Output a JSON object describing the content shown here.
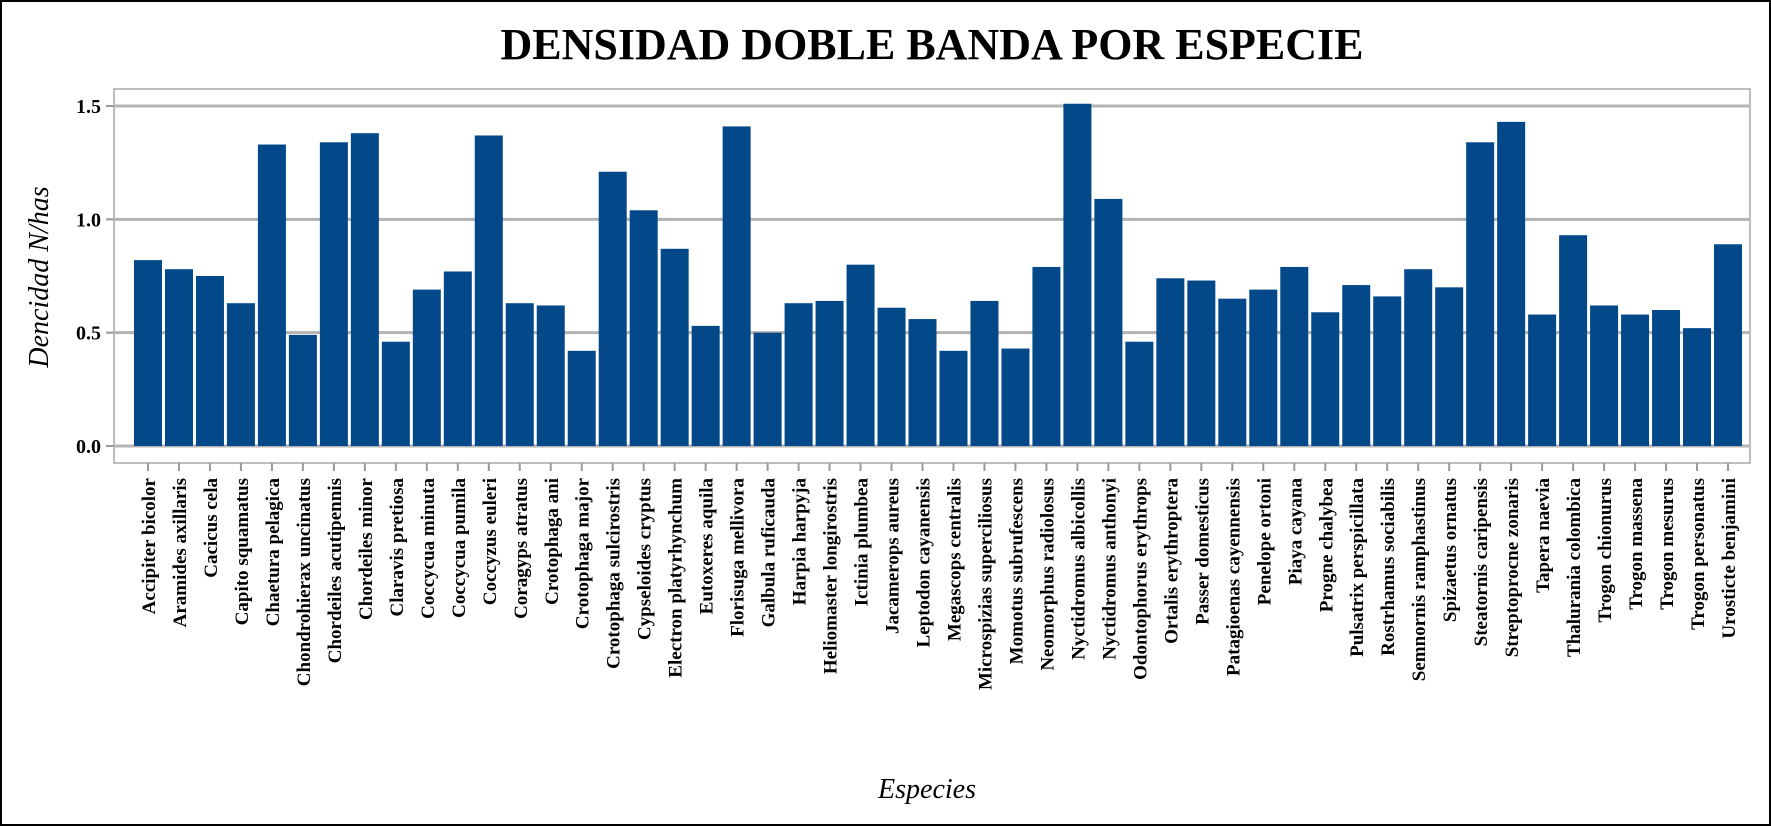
{
  "chart_data": {
    "type": "bar",
    "title": "DENSIDAD DOBLE BANDA POR ESPECIE",
    "xlabel": "Especies",
    "ylabel": "Dencidad N/has",
    "ylim": [
      -0.05,
      1.57
    ],
    "yticks": [
      "0.0",
      "0.5",
      "1.0",
      "1.5"
    ],
    "ytick_values": [
      0,
      0.5,
      1.0,
      1.5
    ],
    "grid": true,
    "bar_color": "#03498a",
    "grid_color": "#b3b3b3",
    "categories": [
      "Accipiter bicolor",
      "Aramides axillaris",
      "Cacicus cela",
      "Capito squamatus",
      "Chaetura pelagica",
      "Chondrohierax uncinatus",
      "Chordeiles acutipennis",
      "Chordeiles minor",
      "Claravis pretiosa",
      "Coccycua minuta",
      "Coccycua pumila",
      "Coccyzus euleri",
      "Coragyps atratus",
      "Crotophaga ani",
      "Crotophaga major",
      "Crotophaga sulcirostris",
      "Cypseloides cryptus",
      "Electron platyrhynchum",
      "Eutoxeres aquila",
      "Florisuga mellivora",
      "Galbula ruficauda",
      "Harpia harpyja",
      "Heliomaster longirostris",
      "Ictinia plumbea",
      "Jacamerops aureus",
      "Leptodon cayanensis",
      "Megascops centralis",
      "Microspizias superciliosus",
      "Momotus subrufescens",
      "Neomorphus radiolosus",
      "Nyctidromus albicollis",
      "Nyctidromus anthonyi",
      "Odontophorus erythrops",
      "Ortalis erythroptera",
      "Passer domesticus",
      "Patagioenas cayennensis",
      "Penelope ortoni",
      "Piaya cayana",
      "Progne chalybea",
      "Pulsatrix perspicillata",
      "Rostrhamus sociabilis",
      "Semnornis ramphastinus",
      "Spizaetus ornatus",
      "Steatornis caripensis",
      "Streptoprocne zonaris",
      "Tapera naevia",
      "Thalurania colombica",
      "Trogon chionurus",
      "Trogon massena",
      "Trogon mesurus",
      "Trogon personatus",
      "Urosticte benjamini"
    ],
    "values": [
      0.82,
      0.78,
      0.75,
      0.63,
      1.33,
      0.49,
      1.34,
      1.38,
      0.46,
      0.69,
      0.77,
      1.37,
      0.63,
      0.62,
      0.42,
      1.21,
      1.04,
      0.87,
      0.53,
      1.41,
      0.5,
      0.63,
      0.64,
      0.8,
      0.61,
      0.56,
      0.42,
      0.64,
      0.43,
      0.79,
      1.51,
      1.09,
      0.46,
      0.74,
      0.73,
      0.65,
      0.69,
      0.79,
      0.59,
      0.71,
      0.66,
      0.78,
      0.7,
      1.34,
      1.43,
      0.58,
      0.93,
      0.62,
      0.58,
      0.6,
      0.52,
      0.89
    ]
  }
}
